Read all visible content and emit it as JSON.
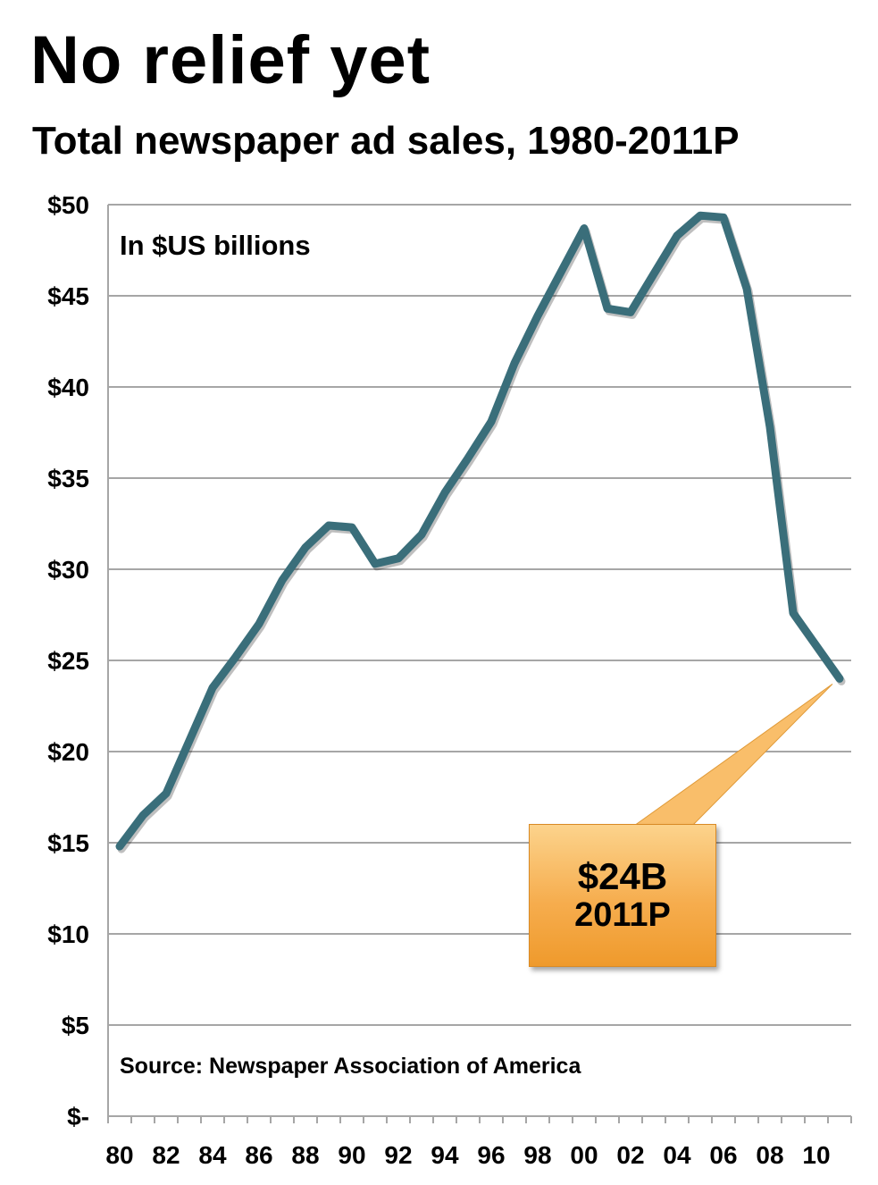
{
  "title": "No relief yet",
  "subtitle": "Total newspaper ad sales, 1980-2011P",
  "unit_note": "In $US billions",
  "source": "Source: Newspaper Association of America",
  "callout": {
    "value": "$24B",
    "label": "2011P"
  },
  "colors": {
    "line": "#3a6e7a",
    "grid": "#a6a6a6",
    "callout": "#f6ad4e"
  },
  "chart_data": {
    "type": "line",
    "title": "Total newspaper ad sales, 1980-2011P",
    "ylabel": "",
    "xlabel": "",
    "ylim": [
      0,
      50
    ],
    "grid": true,
    "y_ticks": [
      "$-",
      "$5",
      "$10",
      "$15",
      "$20",
      "$25",
      "$30",
      "$35",
      "$40",
      "$45",
      "$50"
    ],
    "x_ticks": [
      "80",
      "82",
      "84",
      "86",
      "88",
      "90",
      "92",
      "94",
      "96",
      "98",
      "00",
      "02",
      "04",
      "06",
      "08",
      "10"
    ],
    "x": [
      1980,
      1981,
      1982,
      1983,
      1984,
      1985,
      1986,
      1987,
      1988,
      1989,
      1990,
      1991,
      1992,
      1993,
      1994,
      1995,
      1996,
      1997,
      1998,
      1999,
      2000,
      2001,
      2002,
      2003,
      2004,
      2005,
      2006,
      2007,
      2008,
      2009,
      2010,
      2011
    ],
    "series": [
      {
        "values": [
          14.8,
          16.5,
          17.7,
          20.6,
          23.5,
          25.2,
          27.0,
          29.4,
          31.2,
          32.4,
          32.3,
          30.3,
          30.6,
          31.9,
          34.2,
          36.1,
          38.1,
          41.3,
          43.9,
          46.3,
          48.7,
          44.3,
          44.1,
          46.2,
          48.3,
          49.4,
          49.3,
          45.4,
          37.8,
          27.6,
          25.8,
          24.0
        ]
      }
    ]
  }
}
